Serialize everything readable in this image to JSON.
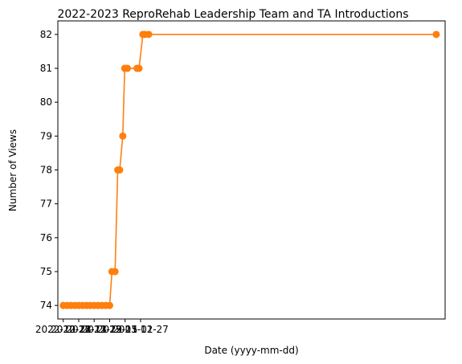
{
  "chart_data": {
    "type": "line",
    "title": "2022-2023 ReproRehab Leadership Team and TA Introductions",
    "xlabel": "Date (yyyy-mm-dd)",
    "ylabel": "Number of Views",
    "ylim": [
      73.6,
      82.4
    ],
    "yticks": [
      74,
      75,
      76,
      77,
      78,
      79,
      80,
      81,
      82
    ],
    "xlim": [
      -1.4,
      98.8
    ],
    "xtick_positions": [
      0,
      4,
      8,
      12,
      16,
      20
    ],
    "xtick_labels": [
      "2022-10-28",
      "2022-11-13",
      "2022-11-29",
      "2022-12-15",
      "2023-01-01",
      "2023-12-27"
    ],
    "grid": false,
    "series": [
      {
        "color": "#ff7f0e",
        "points": [
          [
            0,
            74
          ],
          [
            1,
            74
          ],
          [
            2,
            74
          ],
          [
            3,
            74
          ],
          [
            4,
            74
          ],
          [
            5,
            74
          ],
          [
            6,
            74
          ],
          [
            7,
            74
          ],
          [
            8,
            74
          ],
          [
            9,
            74
          ],
          [
            10,
            74
          ],
          [
            11,
            74
          ],
          [
            12,
            74
          ],
          [
            12.6,
            75
          ],
          [
            13.4,
            75
          ],
          [
            14.1,
            78
          ],
          [
            14.6,
            78
          ],
          [
            15.4,
            79
          ],
          [
            15.9,
            81
          ],
          [
            16.6,
            81
          ],
          [
            19.1,
            81
          ],
          [
            19.6,
            81
          ],
          [
            20.6,
            82
          ],
          [
            21.1,
            82
          ],
          [
            22.1,
            82
          ],
          [
            96.5,
            82
          ]
        ]
      }
    ]
  }
}
